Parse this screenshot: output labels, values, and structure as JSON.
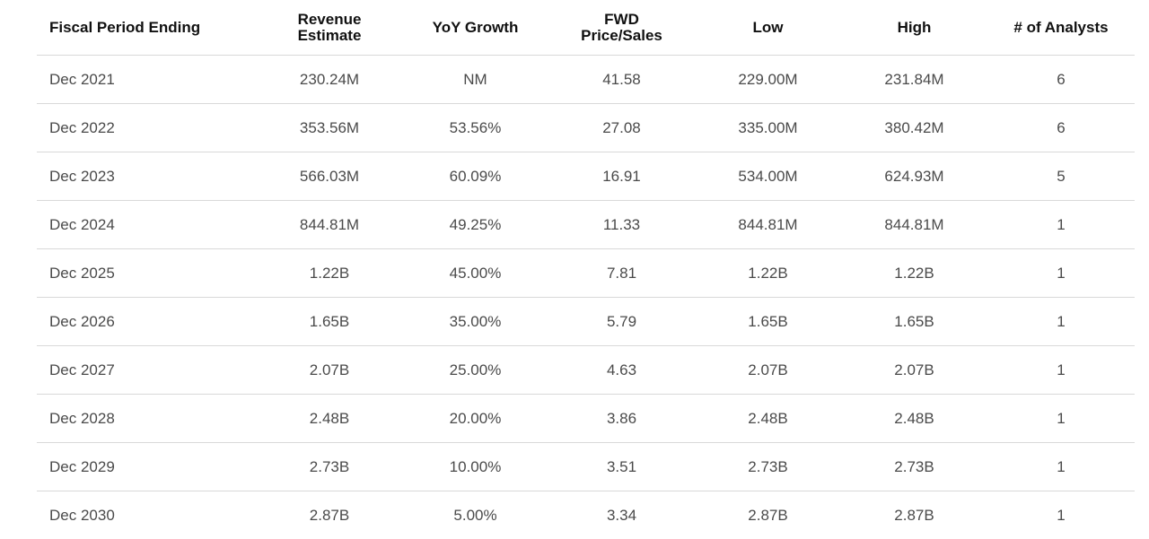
{
  "table": {
    "headers": [
      {
        "lines": [
          "Fiscal Period Ending"
        ]
      },
      {
        "lines": [
          "Revenue",
          "Estimate"
        ]
      },
      {
        "lines": [
          "YoY Growth"
        ]
      },
      {
        "lines": [
          "FWD",
          "Price/Sales"
        ]
      },
      {
        "lines": [
          "Low"
        ]
      },
      {
        "lines": [
          "High"
        ]
      },
      {
        "lines": [
          "# of Analysts"
        ]
      }
    ],
    "rows": [
      [
        "Dec 2021",
        "230.24M",
        "NM",
        "41.58",
        "229.00M",
        "231.84M",
        "6"
      ],
      [
        "Dec 2022",
        "353.56M",
        "53.56%",
        "27.08",
        "335.00M",
        "380.42M",
        "6"
      ],
      [
        "Dec 2023",
        "566.03M",
        "60.09%",
        "16.91",
        "534.00M",
        "624.93M",
        "5"
      ],
      [
        "Dec 2024",
        "844.81M",
        "49.25%",
        "11.33",
        "844.81M",
        "844.81M",
        "1"
      ],
      [
        "Dec 2025",
        "1.22B",
        "45.00%",
        "7.81",
        "1.22B",
        "1.22B",
        "1"
      ],
      [
        "Dec 2026",
        "1.65B",
        "35.00%",
        "5.79",
        "1.65B",
        "1.65B",
        "1"
      ],
      [
        "Dec 2027",
        "2.07B",
        "25.00%",
        "4.63",
        "2.07B",
        "2.07B",
        "1"
      ],
      [
        "Dec 2028",
        "2.48B",
        "20.00%",
        "3.86",
        "2.48B",
        "2.48B",
        "1"
      ],
      [
        "Dec 2029",
        "2.73B",
        "10.00%",
        "3.51",
        "2.73B",
        "2.73B",
        "1"
      ],
      [
        "Dec 2030",
        "2.87B",
        "5.00%",
        "3.34",
        "2.87B",
        "2.87B",
        "1"
      ]
    ]
  }
}
